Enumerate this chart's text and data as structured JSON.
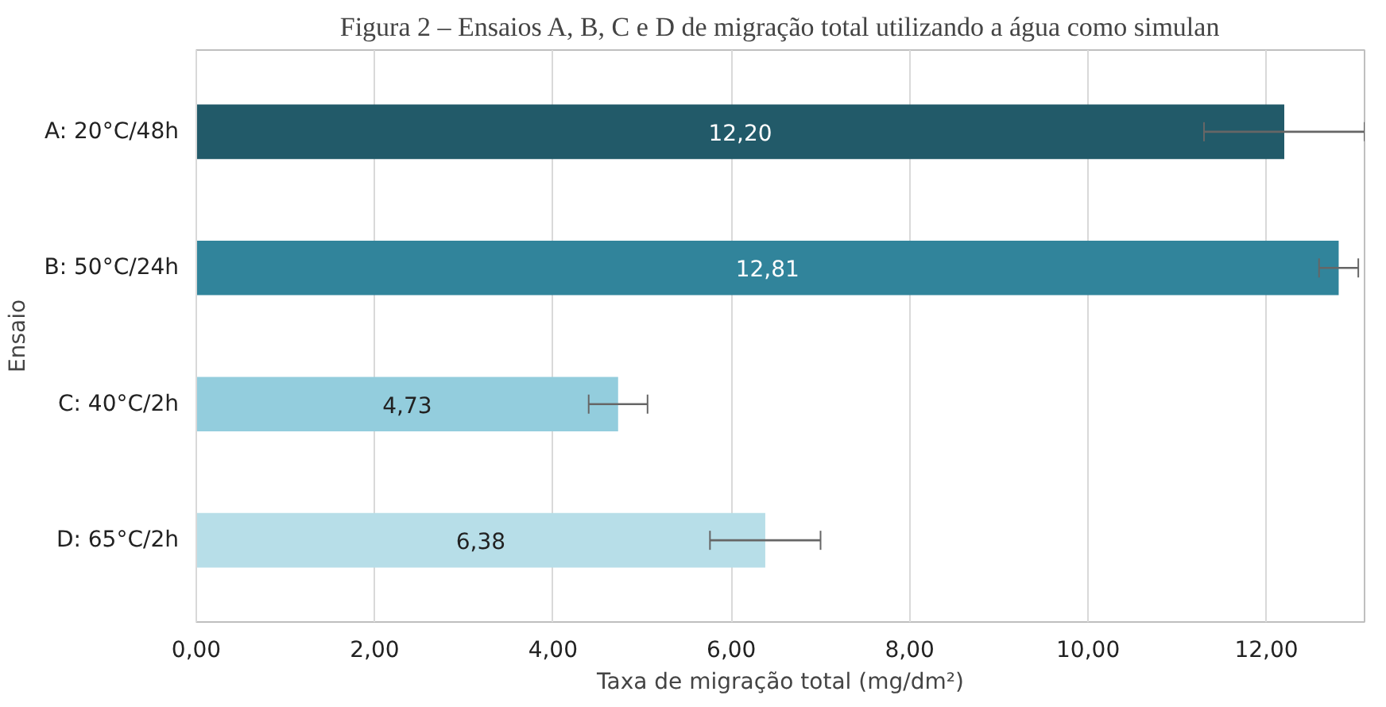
{
  "chart_data": {
    "type": "bar",
    "orientation": "horizontal",
    "title": "Figura 2 – Ensaios A, B, C e D de migração total utilizando a água como simulan",
    "xlabel": "Taxa de migração total (mg/dm²)",
    "ylabel": "Ensaio",
    "categories": [
      "A: 20°C/48h",
      "B: 50°C/24h",
      "C: 40°C/2h",
      "D: 65°C/2h"
    ],
    "values": [
      12.2,
      12.81,
      4.73,
      6.38
    ],
    "colors": [
      "#225a69",
      "#31849b",
      "#93cddd",
      "#b7dee8"
    ],
    "errors": [
      0.9,
      0.22,
      0.33,
      0.62
    ],
    "value_labels": [
      "12,20",
      "12,81",
      "4,73",
      "6,38"
    ],
    "xlim": [
      0,
      13.1
    ],
    "xticks": [
      {
        "value": 0,
        "label": "0,00"
      },
      {
        "value": 2,
        "label": "2,00"
      },
      {
        "value": 4,
        "label": "4,00"
      },
      {
        "value": 6,
        "label": "6,00"
      },
      {
        "value": 8,
        "label": "8,00"
      },
      {
        "value": 10,
        "label": "10,00"
      },
      {
        "value": 12,
        "label": "12,00"
      }
    ],
    "grid": "x"
  }
}
